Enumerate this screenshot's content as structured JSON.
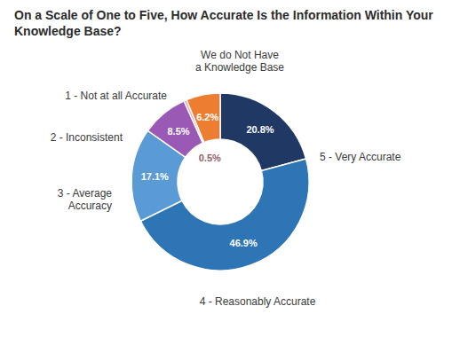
{
  "chart_data": {
    "type": "donut",
    "title": "On a Scale of One to Five, How Accurate Is the Information Within Your Knowledge Base?",
    "categories": [
      "5 - Very Accurate",
      "4 - Reasonably Accurate",
      "3 - Average\nAccuracy",
      "2 - Inconsistent",
      "1 - Not at all Accurate",
      "We do Not Have\na Knowledge Base"
    ],
    "values": [
      20.8,
      46.9,
      17.1,
      8.5,
      0.5,
      6.2
    ],
    "value_labels": [
      "20.8%",
      "46.9%",
      "17.1%",
      "8.5%",
      "0.5%",
      "6.2%"
    ],
    "colors": [
      "#1f3864",
      "#2e75b6",
      "#5b9bd5",
      "#9b59b6",
      "#f4a0b0",
      "#ed7d31"
    ],
    "data_labels": true
  }
}
